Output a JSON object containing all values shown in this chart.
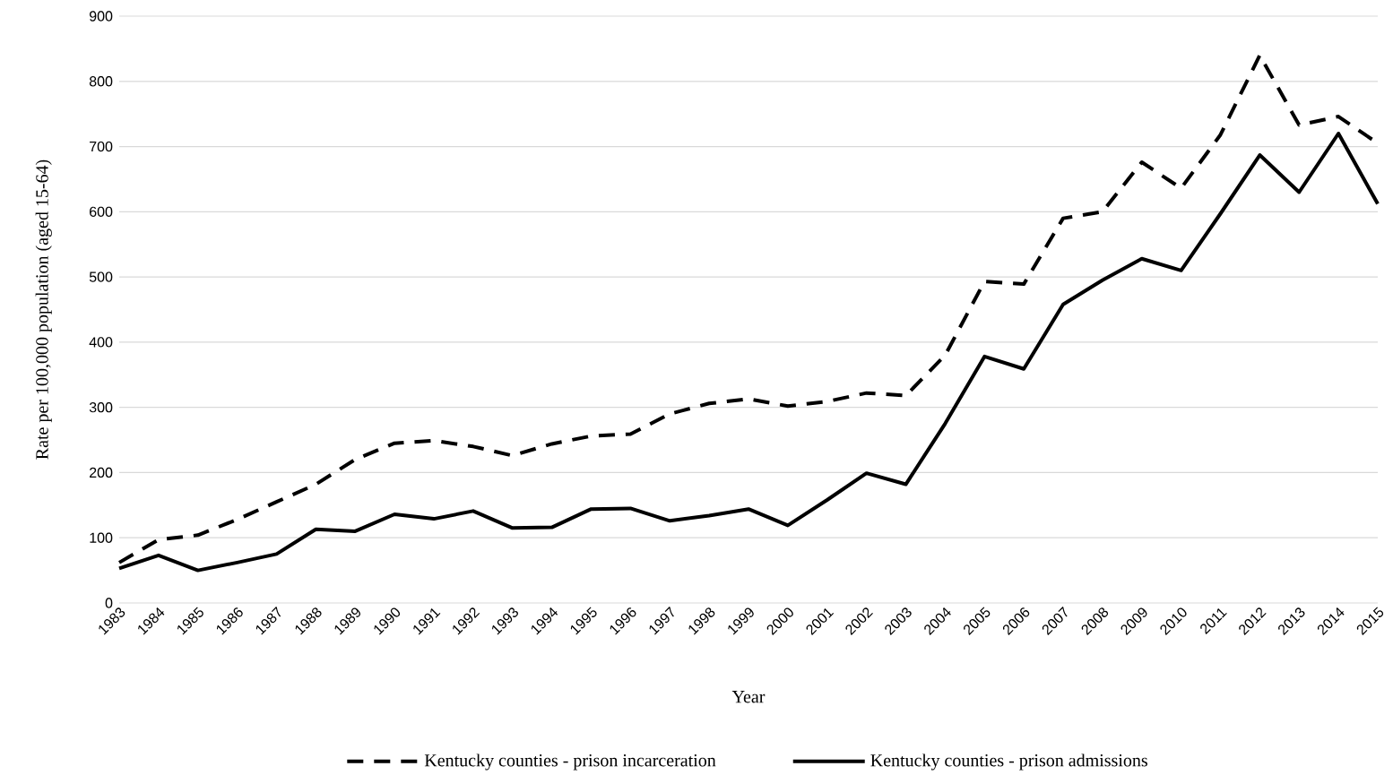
{
  "chart_data": {
    "type": "line",
    "xlabel": "Year",
    "ylabel": "Rate per 100,000 population (aged 15-64)",
    "categories": [
      "1983",
      "1984",
      "1985",
      "1986",
      "1987",
      "1988",
      "1989",
      "1990",
      "1991",
      "1992",
      "1993",
      "1994",
      "1995",
      "1996",
      "1997",
      "1998",
      "1999",
      "2000",
      "2001",
      "2002",
      "2003",
      "2004",
      "2005",
      "2006",
      "2007",
      "2008",
      "2009",
      "2010",
      "2011",
      "2012",
      "2013",
      "2014",
      "2015"
    ],
    "series": [
      {
        "name": "Kentucky counties - prison incarceration",
        "color": "#000000",
        "line_style": "dashed",
        "values": [
          62,
          97,
          104,
          128,
          155,
          182,
          220,
          245,
          249,
          240,
          226,
          244,
          256,
          259,
          290,
          306,
          313,
          302,
          309,
          322,
          318,
          380,
          493,
          489,
          590,
          600,
          676,
          636,
          718,
          840,
          733,
          746,
          705
        ]
      },
      {
        "name": "Kentucky counties - prison admissions",
        "color": "#000000",
        "line_style": "solid",
        "values": [
          53,
          73,
          50,
          62,
          75,
          113,
          110,
          136,
          129,
          141,
          115,
          116,
          144,
          145,
          126,
          134,
          144,
          119,
          158,
          199,
          182,
          275,
          378,
          359,
          458,
          495,
          528,
          510,
          597,
          687,
          630,
          720,
          612
        ]
      }
    ],
    "ylim": [
      0,
      900
    ],
    "yticks": [
      0,
      100,
      200,
      300,
      400,
      500,
      600,
      700,
      800,
      900
    ],
    "grid": "y",
    "legend": "bottom",
    "marker": "none"
  }
}
